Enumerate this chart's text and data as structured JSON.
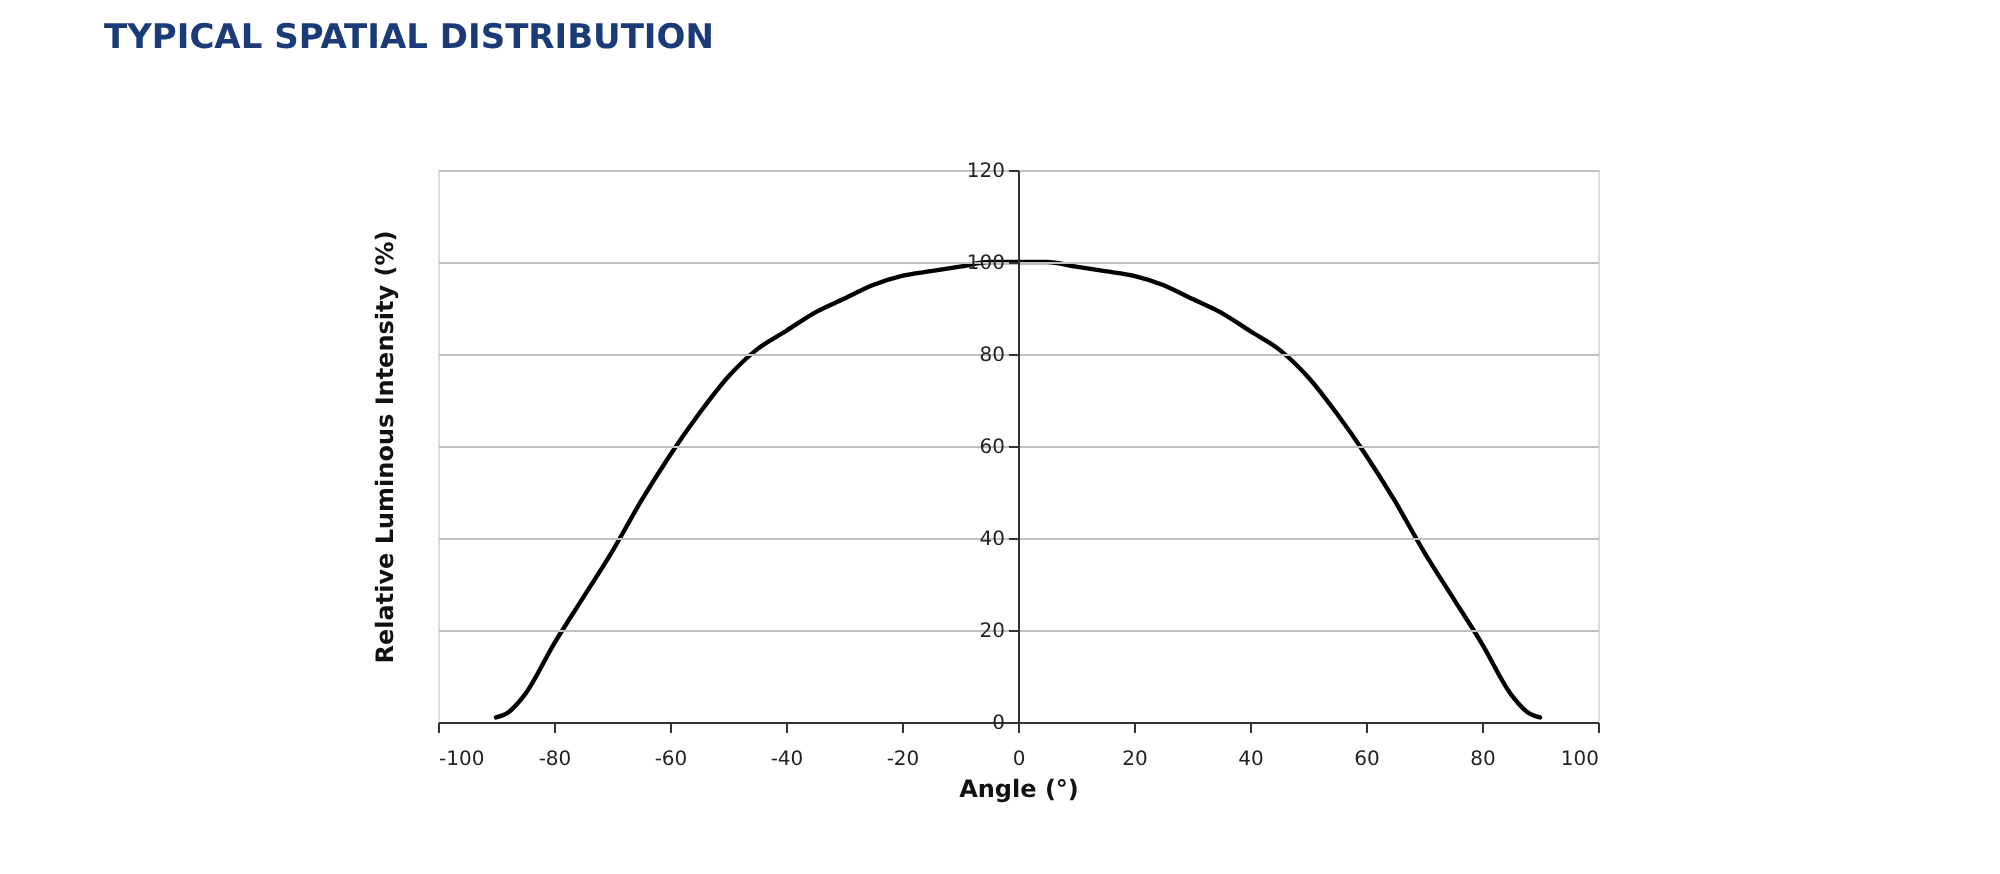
{
  "chart_data": {
    "type": "line",
    "title": "TYPICAL SPATIAL DISTRIBUTION",
    "xlabel": "Angle (°)",
    "ylabel": "Relative Luminous Intensity (%)",
    "x": [
      -90,
      -88,
      -85,
      -80,
      -75,
      -70,
      -65,
      -60,
      -55,
      -50,
      -45,
      -40,
      -35,
      -30,
      -25,
      -20,
      -15,
      -10,
      -5,
      0,
      5,
      10,
      15,
      20,
      25,
      30,
      35,
      40,
      45,
      50,
      55,
      60,
      65,
      70,
      75,
      80,
      85,
      88,
      90
    ],
    "series": [
      {
        "color": "#000000",
        "values": [
          1,
          2,
          6,
          17,
          27,
          37,
          48,
          58,
          67,
          75,
          81,
          85,
          89,
          92,
          95,
          97,
          98,
          99,
          100,
          100,
          100,
          99,
          98,
          97,
          95,
          92,
          89,
          85,
          81,
          75,
          67,
          58,
          48,
          37,
          27,
          17,
          6,
          2,
          1
        ]
      }
    ],
    "xlim": [
      -100,
      100
    ],
    "xticks": [
      -100,
      -80,
      -60,
      -40,
      -20,
      0,
      20,
      40,
      60,
      80,
      100
    ],
    "ylim": [
      0,
      120
    ],
    "yticks": [
      0,
      20,
      40,
      60,
      80,
      100,
      120
    ],
    "grid": "y",
    "marker": "none",
    "line_style": "solid"
  }
}
